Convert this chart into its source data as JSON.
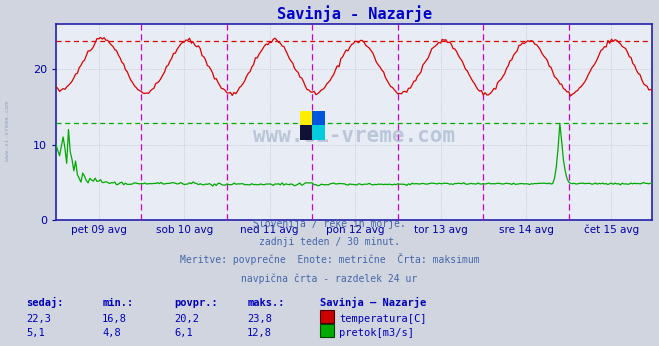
{
  "title": "Savinja - Nazarje",
  "title_color": "#0000cc",
  "background_color": "#d0d5e0",
  "plot_bg_color": "#e8ecf4",
  "grid_color": "#b8b8c8",
  "axis_color": "#0000aa",
  "ylabel_ticks": [
    0,
    10,
    20
  ],
  "ylim": [
    0,
    26
  ],
  "x_labels": [
    "pet 09 avg",
    "sob 10 avg",
    "ned 11 avg",
    "pon 12 avg",
    "tor 13 avg",
    "sre 14 avg",
    "čet 15 avg"
  ],
  "n_points": 336,
  "temp_color": "#dd0000",
  "flow_color": "#00aa00",
  "temp_max_line": 23.8,
  "flow_max_line": 12.8,
  "subtitle_lines": [
    "Slovenija / reke in morje.",
    "zadnji teden / 30 minut.",
    "Meritve: povprečne  Enote: metrične  Črta: maksimum",
    "navpična črta - razdelek 24 ur"
  ],
  "subtitle_color": "#4466aa",
  "stats_color": "#0000bb",
  "stats_header": [
    "sedaj:",
    "min.:",
    "povpr.:",
    "maks.:",
    "Savinja – Nazarje"
  ],
  "temp_stats": [
    "22,3",
    "16,8",
    "20,2",
    "23,8"
  ],
  "flow_stats": [
    "5,1",
    "4,8",
    "6,1",
    "12,8"
  ],
  "temp_label": "temperatura[C]",
  "flow_label": "pretok[m3/s]",
  "vertical_line_color": "#cc00cc",
  "watermark_color": "#8899bb",
  "watermark_text": "www.si-vreme.com"
}
